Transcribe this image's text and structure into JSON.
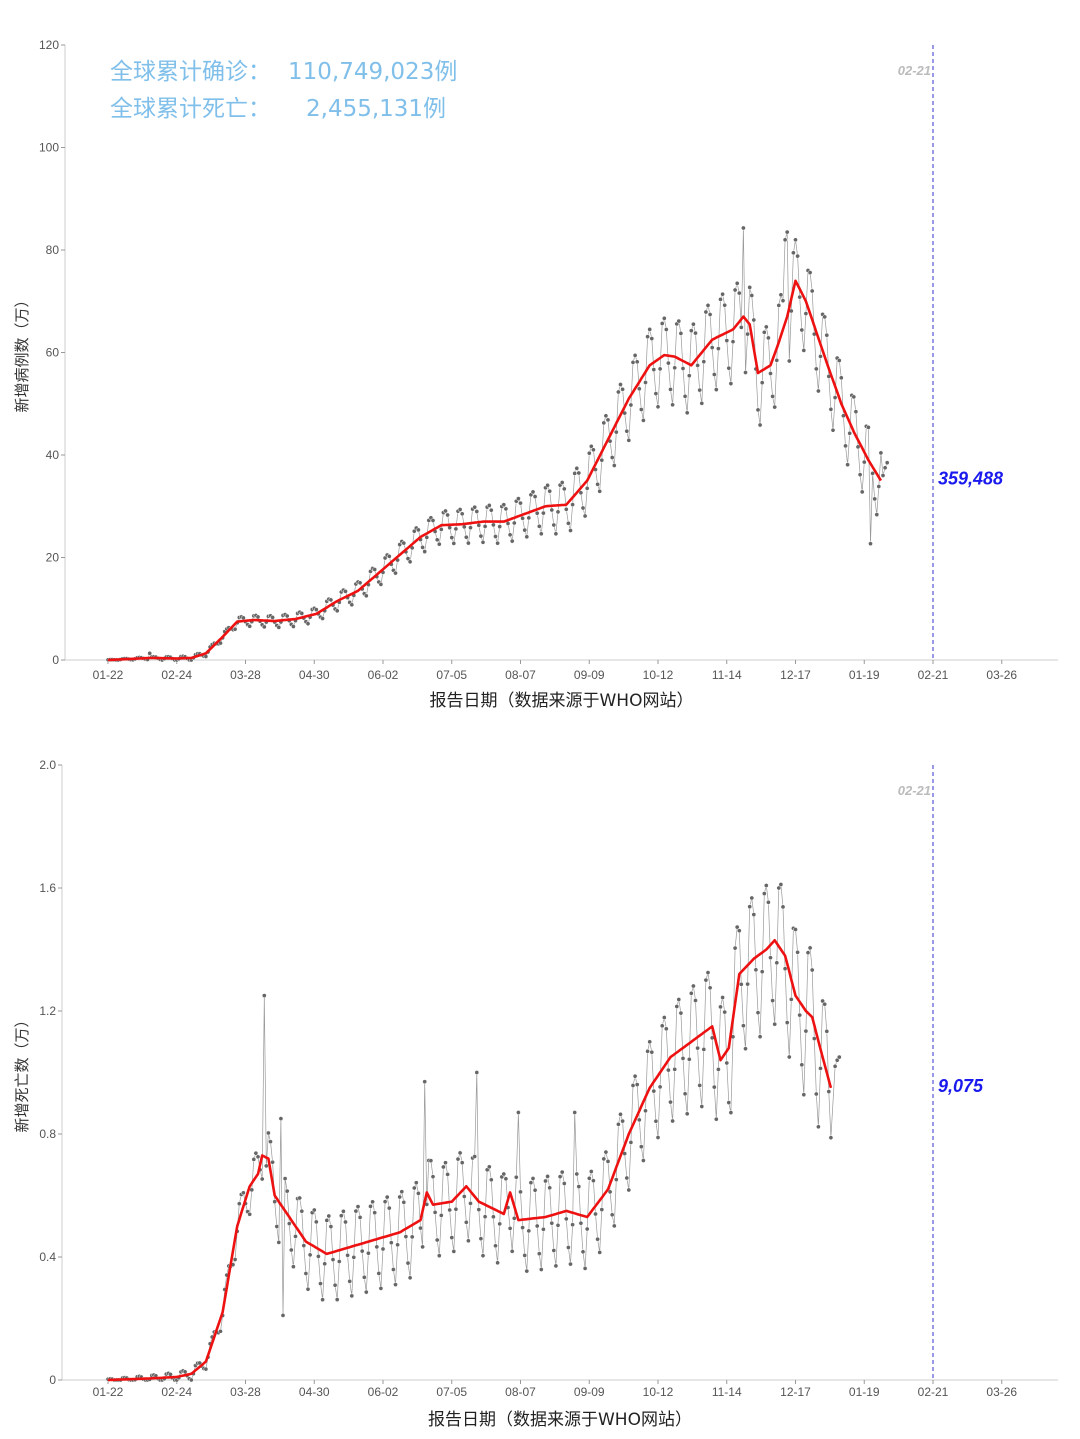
{
  "x_ticks": [
    "01-22",
    "02-24",
    "03-28",
    "04-30",
    "06-02",
    "07-05",
    "08-07",
    "09-09",
    "10-12",
    "11-14",
    "12-17",
    "01-19",
    "02-21",
    "03-26"
  ],
  "xlabel": "报告日期（数据来源于WHO网站）",
  "marker": {
    "date": "02-21",
    "color": "#3333cc",
    "label_color": "#bbbbbb"
  },
  "colors": {
    "points": "#666666",
    "thin_line": "#999999",
    "smooth": "#ee1111",
    "end_label": "#1a1aee",
    "summary": "#7fbfea"
  },
  "summary": {
    "cases_label": "全球累计确诊：",
    "cases_value": "110,749,023例",
    "deaths_label": "全球累计死亡：",
    "deaths_value": "2,455,131例"
  },
  "chart_data": [
    {
      "type": "scatter",
      "name": "cases",
      "ylabel": "新增病例数（万）",
      "ylim": [
        0,
        120
      ],
      "y_ticks": [
        "0",
        "20",
        "40",
        "60",
        "80",
        "100",
        "120"
      ],
      "x_unit": "days since 01-22 (2020)",
      "end_label": "359,488",
      "trend": [
        [
          0,
          0
        ],
        [
          10,
          0.2
        ],
        [
          20,
          0.4
        ],
        [
          33,
          0.3
        ],
        [
          40,
          0.4
        ],
        [
          47,
          1.3
        ],
        [
          55,
          4.5
        ],
        [
          62,
          7.5
        ],
        [
          70,
          7.8
        ],
        [
          80,
          7.6
        ],
        [
          90,
          8.0
        ],
        [
          100,
          9.0
        ],
        [
          110,
          11.5
        ],
        [
          120,
          13.5
        ],
        [
          130,
          17.0
        ],
        [
          140,
          20.5
        ],
        [
          150,
          24.0
        ],
        [
          160,
          26.3
        ],
        [
          170,
          26.5
        ],
        [
          180,
          27.0
        ],
        [
          190,
          27.0
        ],
        [
          200,
          28.5
        ],
        [
          210,
          30.0
        ],
        [
          220,
          30.3
        ],
        [
          230,
          35.0
        ],
        [
          240,
          43.0
        ],
        [
          250,
          51.0
        ],
        [
          260,
          57.5
        ],
        [
          267,
          59.5
        ],
        [
          272,
          59.2
        ],
        [
          280,
          57.5
        ],
        [
          290,
          62.5
        ],
        [
          300,
          64.5
        ],
        [
          305,
          67.0
        ],
        [
          308,
          65.5
        ],
        [
          312,
          56.0
        ],
        [
          318,
          57.5
        ],
        [
          322,
          62.0
        ],
        [
          326,
          67.0
        ],
        [
          330,
          74.0
        ],
        [
          335,
          70.0
        ],
        [
          340,
          64.0
        ],
        [
          345,
          58.0
        ],
        [
          352,
          50.0
        ],
        [
          358,
          44.5
        ],
        [
          365,
          39.0
        ],
        [
          371,
          35.0
        ]
      ],
      "amplitude": [
        [
          0,
          0.05
        ],
        [
          50,
          0.5
        ],
        [
          60,
          0.8
        ],
        [
          100,
          1.2
        ],
        [
          150,
          2.5
        ],
        [
          200,
          3.5
        ],
        [
          240,
          5.5
        ],
        [
          260,
          7.0
        ],
        [
          300,
          8.0
        ],
        [
          340,
          8.0
        ],
        [
          371,
          6.0
        ]
      ],
      "outliers": [
        [
          20,
          1.3
        ],
        [
          305,
          84.3
        ],
        [
          325,
          82.0
        ],
        [
          326,
          83.5
        ],
        [
          366,
          22.7
        ]
      ],
      "extra_points": [
        [
          372,
          36.0
        ],
        [
          373,
          37.5
        ],
        [
          374,
          38.5
        ]
      ]
    },
    {
      "type": "scatter",
      "name": "deaths",
      "ylabel": "新增死亡数（万）",
      "ylim": [
        0,
        2.0
      ],
      "y_ticks": [
        "0",
        "0.4",
        "0.8",
        "1.2",
        "1.6",
        "2.0"
      ],
      "x_unit": "days since 01-22 (2020)",
      "end_label": "9,075",
      "trend": [
        [
          0,
          0
        ],
        [
          20,
          0.005
        ],
        [
          33,
          0.01
        ],
        [
          40,
          0.02
        ],
        [
          47,
          0.06
        ],
        [
          55,
          0.22
        ],
        [
          62,
          0.5
        ],
        [
          68,
          0.63
        ],
        [
          72,
          0.67
        ],
        [
          74,
          0.73
        ],
        [
          77,
          0.72
        ],
        [
          80,
          0.6
        ],
        [
          85,
          0.55
        ],
        [
          90,
          0.5
        ],
        [
          95,
          0.45
        ],
        [
          100,
          0.43
        ],
        [
          105,
          0.41
        ],
        [
          110,
          0.42
        ],
        [
          120,
          0.44
        ],
        [
          130,
          0.46
        ],
        [
          140,
          0.48
        ],
        [
          150,
          0.52
        ],
        [
          153,
          0.61
        ],
        [
          156,
          0.57
        ],
        [
          165,
          0.58
        ],
        [
          172,
          0.63
        ],
        [
          178,
          0.58
        ],
        [
          190,
          0.54
        ],
        [
          193,
          0.61
        ],
        [
          197,
          0.52
        ],
        [
          210,
          0.53
        ],
        [
          220,
          0.55
        ],
        [
          230,
          0.53
        ],
        [
          240,
          0.62
        ],
        [
          250,
          0.8
        ],
        [
          260,
          0.95
        ],
        [
          270,
          1.05
        ],
        [
          280,
          1.1
        ],
        [
          290,
          1.15
        ],
        [
          294,
          1.04
        ],
        [
          298,
          1.08
        ],
        [
          303,
          1.32
        ],
        [
          310,
          1.37
        ],
        [
          316,
          1.4
        ],
        [
          320,
          1.43
        ],
        [
          325,
          1.38
        ],
        [
          330,
          1.25
        ],
        [
          335,
          1.2
        ],
        [
          338,
          1.18
        ],
        [
          343,
          1.05
        ],
        [
          347,
          0.95
        ]
      ],
      "amplitude": [
        [
          0,
          0.003
        ],
        [
          50,
          0.02
        ],
        [
          60,
          0.05
        ],
        [
          80,
          0.1
        ],
        [
          100,
          0.12
        ],
        [
          150,
          0.13
        ],
        [
          200,
          0.13
        ],
        [
          240,
          0.13
        ],
        [
          260,
          0.15
        ],
        [
          300,
          0.2
        ],
        [
          340,
          0.22
        ],
        [
          347,
          0.18
        ]
      ],
      "outliers": [
        [
          75,
          1.25
        ],
        [
          83,
          0.85
        ],
        [
          84,
          0.21
        ],
        [
          152,
          0.97
        ],
        [
          177,
          1.0
        ],
        [
          197,
          0.87
        ],
        [
          224,
          0.87
        ],
        [
          348,
          0.75
        ]
      ],
      "extra_points": [
        [
          349,
          1.02
        ],
        [
          350,
          1.04
        ],
        [
          351,
          1.05
        ]
      ]
    }
  ]
}
